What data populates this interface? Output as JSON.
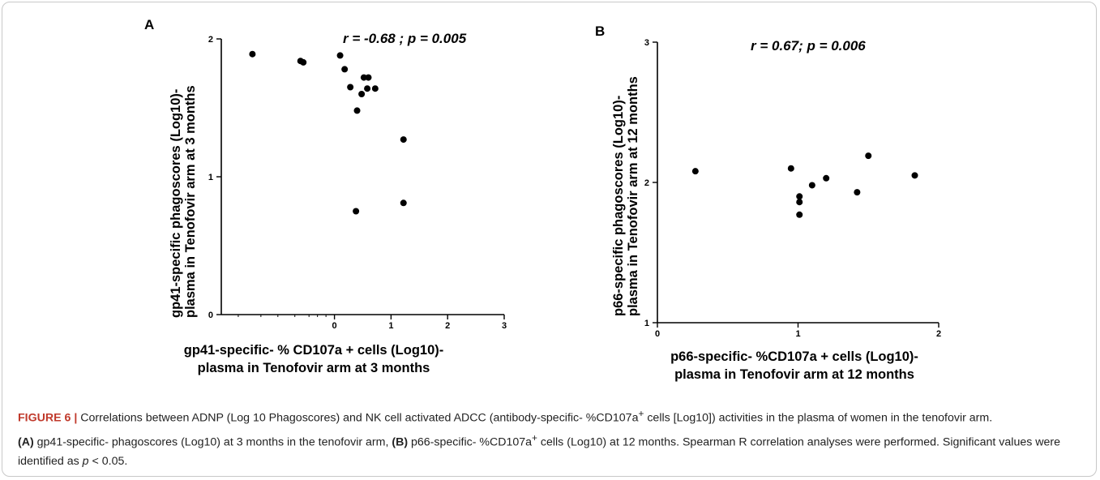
{
  "figure_label": "FIGURE 6 |",
  "caption": {
    "p1": " Correlations between ADNP (Log 10 Phagoscores) and NK cell activated ADCC (antibody-specific- %CD107a",
    "sup1": "+",
    "p2": " cells [Log10]) activities in the plasma of women in the tenofovir arm.",
    "refA": "(A)",
    "p3": " gp41-specific- phagoscores (Log10) at 3 months in the tenofovir arm,",
    "refB": "(B)",
    "p4": " p66-specific- %CD107a",
    "sup2": "+",
    "p5": " cells (Log10) at 12 months. Spearman R correlation analyses were performed. Significant values were identified as ",
    "p_symbol": "p",
    "p6": " < 0.05."
  },
  "chart_data": [
    {
      "panel": "A",
      "type": "scatter",
      "annotation": "r = -0.68 ; p = 0.005",
      "xlabel": [
        "gp41-specific- % CD107a + cells (Log10)-",
        "plasma in Tenofovir arm at 3 months"
      ],
      "ylabel": [
        "gp41-specific phagoscores (Log10)-",
        "plasma in Tenofovir arm at 3 months"
      ],
      "xlim": [
        -2,
        3
      ],
      "ylim": [
        0,
        2
      ],
      "x_ticks": [
        0,
        1,
        2,
        3
      ],
      "y_ticks": [
        0,
        1,
        2
      ],
      "x_scale": "log-like (minor ticks below 0)",
      "grid": false,
      "points": [
        {
          "x": -1.45,
          "y": 1.89
        },
        {
          "x": -0.6,
          "y": 1.84
        },
        {
          "x": -0.55,
          "y": 1.83
        },
        {
          "x": 0.1,
          "y": 1.88
        },
        {
          "x": 0.18,
          "y": 1.78
        },
        {
          "x": 0.28,
          "y": 1.65
        },
        {
          "x": 0.52,
          "y": 1.72
        },
        {
          "x": 0.6,
          "y": 1.72
        },
        {
          "x": 0.58,
          "y": 1.64
        },
        {
          "x": 0.72,
          "y": 1.64
        },
        {
          "x": 0.48,
          "y": 1.6
        },
        {
          "x": 0.4,
          "y": 1.48
        },
        {
          "x": 1.22,
          "y": 1.27
        },
        {
          "x": 1.22,
          "y": 0.81
        },
        {
          "x": 0.38,
          "y": 0.75
        }
      ]
    },
    {
      "panel": "B",
      "type": "scatter",
      "annotation": "r = 0.67; p = 0.006",
      "xlabel": [
        "p66-specific- %CD107a + cells (Log10)-",
        "plasma in Tenofovir arm at 12 months"
      ],
      "ylabel": [
        "p66-specific phagoscores (Log10)-",
        "plasma in Tenofovir arm at 12 months"
      ],
      "xlim": [
        0,
        2
      ],
      "ylim": [
        1,
        3
      ],
      "x_ticks": [
        0,
        1,
        2
      ],
      "y_ticks": [
        1,
        2,
        3
      ],
      "grid": false,
      "points": [
        {
          "x": 0.27,
          "y": 2.08
        },
        {
          "x": 0.95,
          "y": 2.1
        },
        {
          "x": 1.01,
          "y": 1.9
        },
        {
          "x": 1.01,
          "y": 1.86
        },
        {
          "x": 1.01,
          "y": 1.77
        },
        {
          "x": 1.1,
          "y": 1.98
        },
        {
          "x": 1.2,
          "y": 2.03
        },
        {
          "x": 1.42,
          "y": 1.93
        },
        {
          "x": 1.5,
          "y": 2.19
        },
        {
          "x": 1.83,
          "y": 2.05
        }
      ]
    }
  ]
}
